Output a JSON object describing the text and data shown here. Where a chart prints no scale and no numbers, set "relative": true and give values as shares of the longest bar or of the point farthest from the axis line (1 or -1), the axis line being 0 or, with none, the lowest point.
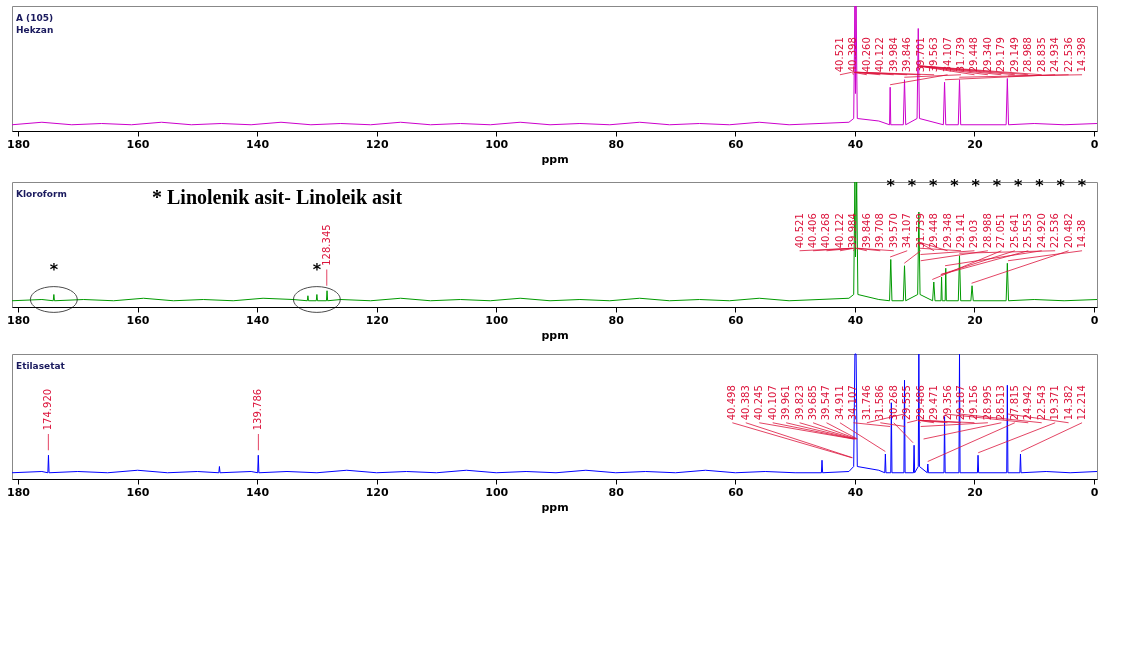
{
  "chart_data": [
    {
      "type": "line",
      "title": "A (105)",
      "subtitle": "Hekzan",
      "xlabel": "ppm",
      "relative": true,
      "xlim": [
        181,
        -0.5
      ],
      "xticks": [
        180,
        160,
        140,
        120,
        100,
        80,
        60,
        40,
        20,
        0
      ],
      "series": [
        {
          "color": "#cc00cc",
          "x": [
            181,
            176,
            171,
            166,
            161,
            156,
            151,
            146,
            141,
            136,
            131,
            126,
            121,
            116,
            111,
            106,
            101,
            96,
            91,
            86,
            81,
            76,
            71,
            66,
            61,
            56,
            51,
            46,
            41,
            40.2,
            40.0,
            39.9,
            39.8,
            39.6,
            36,
            34.2,
            34.1,
            34.0,
            31.9,
            31.7,
            31.5,
            29.6,
            29.4,
            29.2,
            25.2,
            25.0,
            24.8,
            22.7,
            22.5,
            22.3,
            14.7,
            14.5,
            14.3,
            10,
            5,
            -0.5
          ],
          "values": [
            0.05,
            0.07,
            0.05,
            0.06,
            0.05,
            0.07,
            0.05,
            0.06,
            0.05,
            0.07,
            0.05,
            0.06,
            0.05,
            0.07,
            0.05,
            0.06,
            0.05,
            0.07,
            0.05,
            0.06,
            0.05,
            0.07,
            0.05,
            0.06,
            0.05,
            0.07,
            0.05,
            0.06,
            0.07,
            0.1,
            1,
            0.3,
            1,
            0.1,
            0.08,
            0.05,
            0.35,
            0.05,
            0.05,
            0.41,
            0.05,
            0.1,
            0.82,
            0.1,
            0.05,
            0.39,
            0.05,
            0.05,
            0.41,
            0.05,
            0.05,
            0.42,
            0.05,
            0.06,
            0.05,
            0.06
          ]
        }
      ],
      "annotations": [
        {
          "text": "40.521",
          "x": 40.521,
          "y": 0.45
        },
        {
          "text": "40.398",
          "x": 40.398,
          "y": 0.45
        },
        {
          "text": "40.260",
          "x": 40.26,
          "y": 0.45
        },
        {
          "text": "40.122",
          "x": 40.122,
          "y": 0.45
        },
        {
          "text": "39.984",
          "x": 39.984,
          "y": 0.45
        },
        {
          "text": "39.846",
          "x": 39.846,
          "y": 0.45
        },
        {
          "text": "39.701",
          "x": 39.701,
          "y": 0.45
        },
        {
          "text": "39.563",
          "x": 39.563,
          "y": 0.45
        },
        {
          "text": "34.107",
          "x": 34.107,
          "y": 0.35
        },
        {
          "text": "31.739",
          "x": 31.739,
          "y": 0.41
        },
        {
          "text": "29.448",
          "x": 29.448,
          "y": 0.5
        },
        {
          "text": "29.340",
          "x": 29.34,
          "y": 0.5
        },
        {
          "text": "29.179",
          "x": 29.179,
          "y": 0.5
        },
        {
          "text": "29.149",
          "x": 29.149,
          "y": 0.5
        },
        {
          "text": "28.988",
          "x": 28.988,
          "y": 0.5
        },
        {
          "text": "28.835",
          "x": 28.835,
          "y": 0.5
        },
        {
          "text": "24.934",
          "x": 24.934,
          "y": 0.39
        },
        {
          "text": "22.536",
          "x": 22.536,
          "y": 0.41
        },
        {
          "text": "14.398",
          "x": 14.398,
          "y": 0.42
        }
      ]
    },
    {
      "type": "line",
      "title": "Kloroform",
      "xlabel": "ppm",
      "relative": true,
      "xlim": [
        181,
        -0.5
      ],
      "xticks": [
        180,
        160,
        140,
        120,
        100,
        80,
        60,
        40,
        20,
        0
      ],
      "series": [
        {
          "color": "#009900",
          "x": [
            181,
            176,
            174.1,
            174.0,
            173.9,
            169,
            164,
            159,
            154,
            149,
            144,
            139,
            134,
            131.6,
            131.5,
            131.4,
            130.1,
            130.0,
            129.9,
            128.4,
            128.3,
            128.2,
            126,
            121,
            116,
            111,
            106,
            101,
            96,
            91,
            86,
            81,
            76,
            71,
            66,
            61,
            56,
            51,
            46,
            41,
            40.2,
            40.0,
            39.9,
            39.7,
            39.5,
            36,
            34.2,
            34.0,
            33.8,
            31.9,
            31.7,
            31.5,
            29.5,
            29.3,
            29.1,
            27.0,
            26.8,
            26.6,
            25.6,
            25.5,
            25.4,
            24.9,
            24.8,
            24.7,
            22.7,
            22.5,
            22.3,
            20.6,
            20.4,
            20.2,
            14.7,
            14.5,
            14.3,
            10,
            5,
            -0.5
          ],
          "values": [
            0.05,
            0.06,
            0.05,
            0.1,
            0.05,
            0.06,
            0.05,
            0.07,
            0.05,
            0.06,
            0.05,
            0.07,
            0.06,
            0.05,
            0.09,
            0.05,
            0.05,
            0.1,
            0.05,
            0.05,
            0.13,
            0.05,
            0.06,
            0.05,
            0.07,
            0.05,
            0.06,
            0.05,
            0.07,
            0.05,
            0.06,
            0.05,
            0.07,
            0.05,
            0.06,
            0.05,
            0.07,
            0.05,
            0.06,
            0.07,
            0.1,
            1,
            0.4,
            1,
            0.1,
            0.06,
            0.05,
            0.38,
            0.05,
            0.05,
            0.33,
            0.05,
            0.1,
            0.76,
            0.1,
            0.05,
            0.2,
            0.05,
            0.05,
            0.24,
            0.05,
            0.05,
            0.31,
            0.05,
            0.05,
            0.41,
            0.05,
            0.05,
            0.17,
            0.05,
            0.05,
            0.35,
            0.05,
            0.06,
            0.05,
            0.06
          ]
        }
      ],
      "annotations": [
        {
          "text": "128.345",
          "x": 128.345,
          "y": 0.13
        },
        {
          "text": "40.521",
          "x": 40.521,
          "y": 0.45
        },
        {
          "text": "40.406",
          "x": 40.406,
          "y": 0.45
        },
        {
          "text": "40.268",
          "x": 40.268,
          "y": 0.45
        },
        {
          "text": "40.122",
          "x": 40.122,
          "y": 0.45
        },
        {
          "text": "39.984",
          "x": 39.984,
          "y": 0.45
        },
        {
          "text": "39.846",
          "x": 39.846,
          "y": 0.45
        },
        {
          "text": "39.708",
          "x": 39.708,
          "y": 0.45
        },
        {
          "text": "39.570",
          "x": 39.57,
          "y": 0.45
        },
        {
          "text": "34.107",
          "x": 34.107,
          "y": 0.38
        },
        {
          "text": "31.739",
          "x": 31.739,
          "y": 0.33
        },
        {
          "text": "29.448",
          "x": 29.448,
          "y": 0.5
        },
        {
          "text": "29.348",
          "x": 29.348,
          "y": 0.5
        },
        {
          "text": "29.141",
          "x": 29.141,
          "y": 0.45
        },
        {
          "text": "29.03",
          "x": 29.03,
          "y": 0.4
        },
        {
          "text": "28.988",
          "x": 28.988,
          "y": 0.35
        },
        {
          "text": "27.051",
          "x": 27.051,
          "y": 0.2
        },
        {
          "text": "25.641",
          "x": 25.641,
          "y": 0.24
        },
        {
          "text": "25.553",
          "x": 25.553,
          "y": 0.24
        },
        {
          "text": "24.920",
          "x": 24.92,
          "y": 0.31
        },
        {
          "text": "22.536",
          "x": 22.536,
          "y": 0.41
        },
        {
          "text": "20.482",
          "x": 20.482,
          "y": 0.17
        },
        {
          "text": "14.38",
          "x": 14.38,
          "y": 0.35
        },
        "* Linolenik asit- Linoleik asit",
        "*",
        "*",
        "*",
        "*",
        "*",
        "*",
        "*",
        "*",
        "*",
        "*",
        {
          "text": "*",
          "x": 174.0,
          "y": 0.1
        },
        {
          "text": "*",
          "x": 130.0,
          "y": 0.1
        }
      ]
    },
    {
      "type": "line",
      "title": "Etilasetat",
      "xlabel": "ppm",
      "relative": true,
      "xlim": [
        181,
        -0.5
      ],
      "xticks": [
        180,
        160,
        140,
        120,
        100,
        80,
        60,
        40,
        20,
        0
      ],
      "series": [
        {
          "color": "#0000ff",
          "x": [
            181,
            176,
            175.0,
            174.9,
            174.8,
            170,
            165,
            160,
            155,
            150,
            146.4,
            146.3,
            146.2,
            141,
            139.9,
            139.8,
            139.7,
            135,
            130,
            125,
            120,
            115,
            110,
            105,
            100,
            95,
            90,
            85,
            80,
            75,
            70,
            65,
            60,
            55,
            50,
            45.6,
            45.5,
            45.4,
            41,
            40.2,
            40.0,
            39.8,
            39.6,
            36,
            35.0,
            34.9,
            34.8,
            34.0,
            33.9,
            33.8,
            31.8,
            31.7,
            31.6,
            30.2,
            30.1,
            30.0,
            29.4,
            29.3,
            29.2,
            27.9,
            27.8,
            27.7,
            25.1,
            25.0,
            24.9,
            22.6,
            22.5,
            22.4,
            19.5,
            19.4,
            19.3,
            14.6,
            14.5,
            14.4,
            12.4,
            12.3,
            12.2,
            8,
            4,
            -0.5
          ],
          "values": [
            0.05,
            0.06,
            0.05,
            0.19,
            0.05,
            0.06,
            0.05,
            0.07,
            0.05,
            0.06,
            0.05,
            0.1,
            0.05,
            0.06,
            0.05,
            0.19,
            0.05,
            0.06,
            0.05,
            0.07,
            0.05,
            0.06,
            0.05,
            0.07,
            0.05,
            0.06,
            0.05,
            0.07,
            0.05,
            0.06,
            0.05,
            0.07,
            0.05,
            0.06,
            0.05,
            0.05,
            0.15,
            0.05,
            0.06,
            0.1,
            1,
            1,
            0.1,
            0.07,
            0.05,
            0.2,
            0.05,
            0.05,
            0.61,
            0.05,
            0.05,
            0.79,
            0.05,
            0.05,
            0.27,
            0.05,
            0.1,
            1,
            0.1,
            0.05,
            0.12,
            0.05,
            0.05,
            0.5,
            0.05,
            0.05,
            1,
            0.05,
            0.05,
            0.19,
            0.05,
            0.05,
            0.75,
            0.05,
            0.05,
            0.2,
            0.05,
            0.06,
            0.05,
            0.06
          ]
        }
      ],
      "annotations": [
        {
          "text": "174.920",
          "x": 174.92,
          "y": 0.19
        },
        {
          "text": "139.786",
          "x": 139.786,
          "y": 0.19
        },
        {
          "text": "40.498",
          "x": 40.498,
          "y": 0.15
        },
        {
          "text": "40.383",
          "x": 40.383,
          "y": 0.15
        },
        {
          "text": "40.245",
          "x": 40.245,
          "y": 0.3
        },
        {
          "text": "40.107",
          "x": 40.107,
          "y": 0.3
        },
        {
          "text": "39.961",
          "x": 39.961,
          "y": 0.3
        },
        {
          "text": "39.823",
          "x": 39.823,
          "y": 0.3
        },
        {
          "text": "39.685",
          "x": 39.685,
          "y": 0.3
        },
        {
          "text": "39.547",
          "x": 39.547,
          "y": 0.3
        },
        {
          "text": "34.911",
          "x": 34.911,
          "y": 0.2
        },
        {
          "text": "34.107",
          "x": 34.107,
          "y": 0.4
        },
        {
          "text": "31.746",
          "x": 31.746,
          "y": 0.5
        },
        {
          "text": "31.586",
          "x": 31.586,
          "y": 0.4
        },
        {
          "text": "30.268",
          "x": 30.268,
          "y": 0.27
        },
        {
          "text": "29.555",
          "x": 29.555,
          "y": 0.45
        },
        {
          "text": "29.486",
          "x": 29.486,
          "y": 0.45
        },
        {
          "text": "29.471",
          "x": 29.471,
          "y": 0.45
        },
        {
          "text": "29.356",
          "x": 29.356,
          "y": 0.45
        },
        {
          "text": "29.187",
          "x": 29.187,
          "y": 0.45
        },
        {
          "text": "29.156",
          "x": 29.156,
          "y": 0.45
        },
        {
          "text": "28.995",
          "x": 28.995,
          "y": 0.4
        },
        {
          "text": "28.513",
          "x": 28.513,
          "y": 0.3
        },
        {
          "text": "27.815",
          "x": 27.815,
          "y": 0.12
        },
        {
          "text": "24.942",
          "x": 24.942,
          "y": 0.5
        },
        {
          "text": "22.543",
          "x": 22.543,
          "y": 0.5
        },
        {
          "text": "19.371",
          "x": 19.371,
          "y": 0.19
        },
        {
          "text": "14.382",
          "x": 14.382,
          "y": 0.5
        },
        {
          "text": "12.214",
          "x": 12.214,
          "y": 0.2
        }
      ]
    }
  ]
}
